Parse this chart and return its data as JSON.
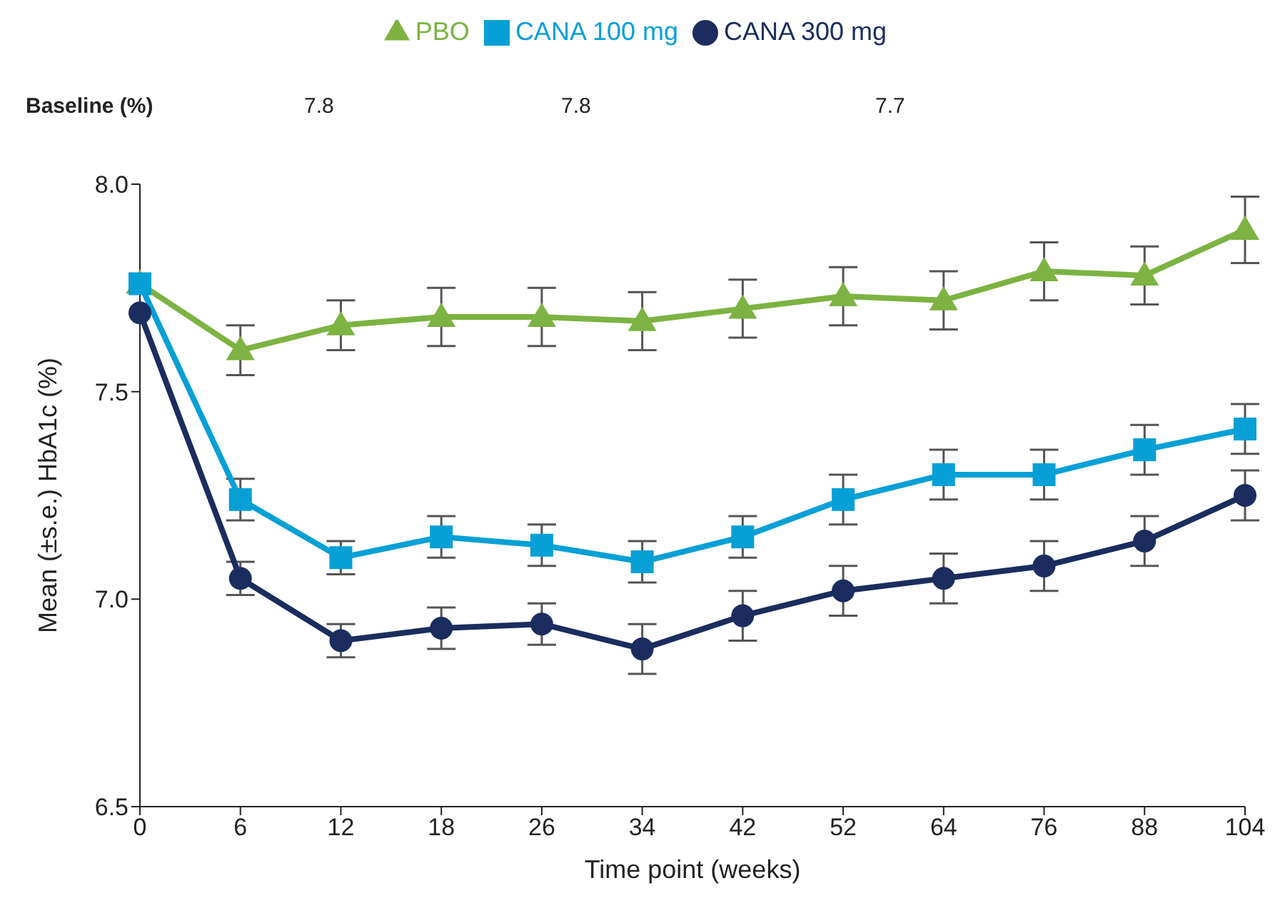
{
  "chart_data": {
    "type": "line",
    "xlabel": "Time point (weeks)",
    "ylabel": "Mean (±s.e.) HbA1c (%)",
    "categories": [
      "0",
      "6",
      "12",
      "18",
      "26",
      "34",
      "42",
      "52",
      "64",
      "76",
      "88",
      "104"
    ],
    "ylim": [
      6.5,
      8.0
    ],
    "yticks": [
      {
        "value": 6.5,
        "label": "6.5"
      },
      {
        "value": 7.0,
        "label": "7.0"
      },
      {
        "value": 7.5,
        "label": "7.5"
      },
      {
        "value": 8.0,
        "label": "8.0"
      }
    ],
    "series": [
      {
        "name": "PBO",
        "color": "#7cb342",
        "marker": "triangle",
        "values": [
          7.76,
          7.6,
          7.66,
          7.68,
          7.68,
          7.67,
          7.7,
          7.73,
          7.72,
          7.79,
          7.78,
          7.89
        ],
        "errors": [
          null,
          0.06,
          0.06,
          0.07,
          0.07,
          0.07,
          0.07,
          0.07,
          0.07,
          0.07,
          0.07,
          0.08
        ]
      },
      {
        "name": "CANA 100 mg",
        "color": "#06a0d6",
        "marker": "square",
        "values": [
          7.76,
          7.24,
          7.1,
          7.15,
          7.13,
          7.09,
          7.15,
          7.24,
          7.3,
          7.3,
          7.36,
          7.41
        ],
        "errors": [
          null,
          0.05,
          0.04,
          0.05,
          0.05,
          0.05,
          0.05,
          0.06,
          0.06,
          0.06,
          0.06,
          0.06
        ]
      },
      {
        "name": "CANA 300 mg",
        "color": "#1b2d5e",
        "marker": "circle",
        "values": [
          7.69,
          7.05,
          6.9,
          6.93,
          6.94,
          6.88,
          6.96,
          7.02,
          7.05,
          7.08,
          7.14,
          7.25
        ],
        "errors": [
          null,
          0.04,
          0.04,
          0.05,
          0.05,
          0.06,
          0.06,
          0.06,
          0.06,
          0.06,
          0.06,
          0.06
        ]
      }
    ],
    "annotations": [
      "Baseline (%)",
      "7.8",
      "7.8",
      "7.7"
    ],
    "legend": "top"
  }
}
